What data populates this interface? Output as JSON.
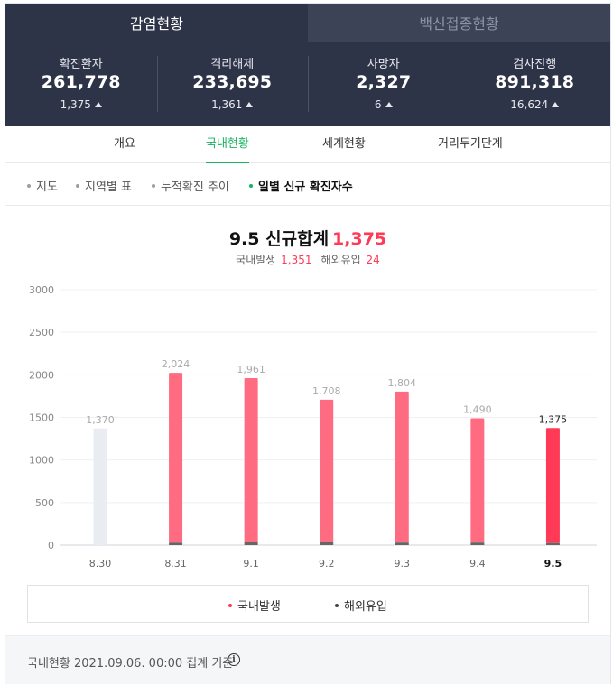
{
  "top_tabs": {
    "active": "감염현황",
    "inactive": "백신접종현황"
  },
  "stats": [
    {
      "label": "확진환자",
      "value": "261,778",
      "delta": "1,375"
    },
    {
      "label": "격리해제",
      "value": "233,695",
      "delta": "1,361"
    },
    {
      "label": "사망자",
      "value": "2,327",
      "delta": "6"
    },
    {
      "label": "검사진행",
      "value": "891,318",
      "delta": "16,624"
    }
  ],
  "sub_tabs": [
    "개요",
    "국내현황",
    "세계현황",
    "거리두기단계"
  ],
  "view_tabs": [
    "지도",
    "지역별 표",
    "누적확진 추이",
    "일별 신규 확진자수"
  ],
  "headline": {
    "date": "9.5",
    "label": "신규합계",
    "total": "1,375"
  },
  "subline": {
    "domestic_label": "국내발생",
    "domestic": "1,351",
    "overseas_label": "해외유입",
    "overseas": "24"
  },
  "legend": {
    "domestic": "국내발생",
    "overseas": "해외유입"
  },
  "footer": {
    "text": "국내현황 2021.09.06. 00:00 집계 기준"
  },
  "colors": {
    "accent_green": "#17b35d",
    "domestic": "#ff6b81",
    "highlight": "#ff3a56",
    "overseas": "#666666",
    "prior": "#e9edf2",
    "header_bg": "#2e3447"
  },
  "chart_data": {
    "type": "bar",
    "stacked": true,
    "categories": [
      "8.30",
      "8.31",
      "9.1",
      "9.2",
      "9.3",
      "9.4",
      "9.5"
    ],
    "totals": [
      1370,
      2024,
      1961,
      1708,
      1804,
      1490,
      1375
    ],
    "total_labels": [
      "1,370",
      "2,024",
      "1,961",
      "1,708",
      "1,804",
      "1,490",
      "1,375"
    ],
    "series": [
      {
        "name": "국내발생",
        "values": [
          1370,
          1996,
          1925,
          1676,
          1774,
          1460,
          1351
        ]
      },
      {
        "name": "해외유입",
        "values": [
          0,
          28,
          36,
          32,
          30,
          30,
          24
        ]
      }
    ],
    "y_ticks": [
      0,
      500,
      1000,
      1500,
      2000,
      2500,
      3000
    ],
    "ylim": [
      0,
      3000
    ],
    "grid": true,
    "legend_position": "bottom",
    "highlight_category": "9.5"
  }
}
